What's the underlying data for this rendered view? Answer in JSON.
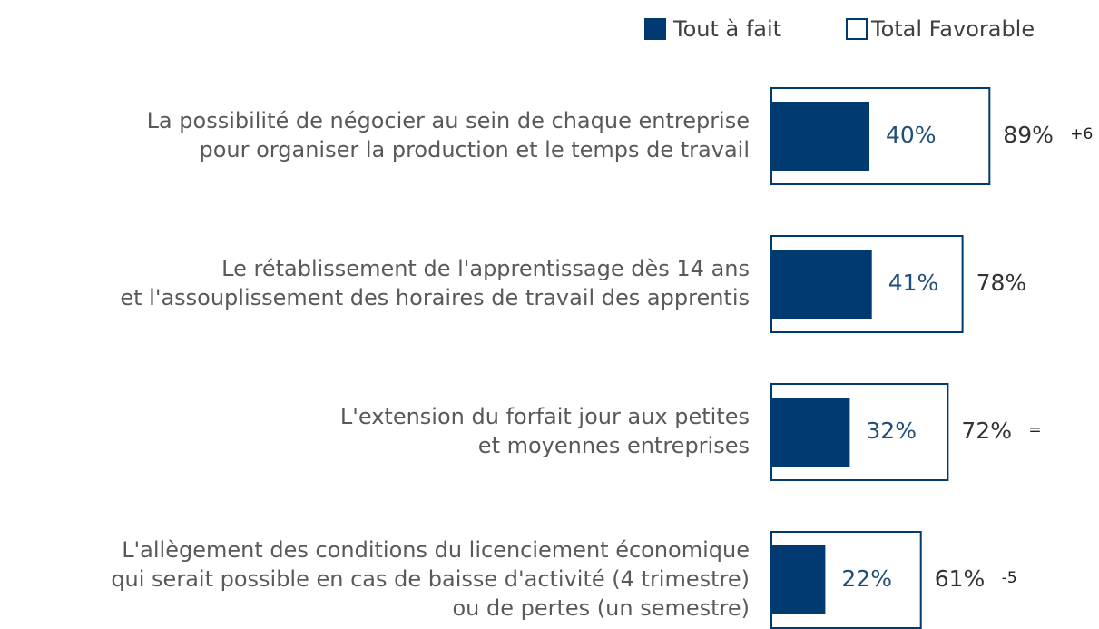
{
  "chart_data": {
    "type": "bar",
    "categories": [
      [
        "La possibilité de négocier au sein de chaque entreprise",
        "pour organiser la production et le temps de travail"
      ],
      [
        "Le rétablissement de l'apprentissage dès 14 ans",
        "et l'assouplissement des horaires de travail des apprentis"
      ],
      [
        "L'extension du forfait jour aux petites",
        "et moyennes entreprises"
      ],
      [
        "L'allègement des conditions du licenciement économique",
        "qui serait possible en cas de baisse d'activité (4 trimestre)",
        "ou de pertes (un semestre)"
      ]
    ],
    "series": [
      {
        "name": "Tout à fait",
        "color": "#003a70",
        "values": [
          40,
          41,
          32,
          22
        ],
        "value_labels": [
          "40%",
          "41%",
          "32%",
          "22%"
        ]
      },
      {
        "name": "Total Favorable",
        "color": "#003a70",
        "values": [
          89,
          78,
          72,
          61
        ],
        "value_labels": [
          "89%",
          "78%",
          "72%",
          "61%"
        ]
      }
    ],
    "annotations": [
      "+6",
      null,
      "=",
      "-5"
    ],
    "legend": "top-right"
  }
}
